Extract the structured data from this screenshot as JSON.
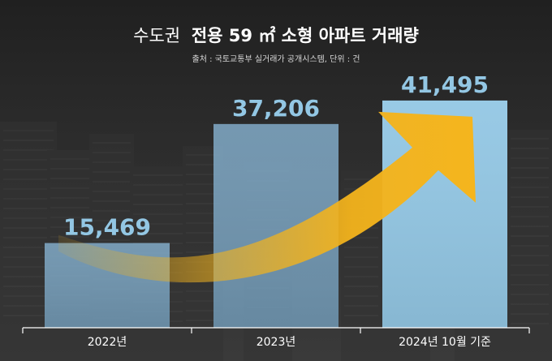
{
  "title_light": "수도권",
  "title_bold": "전용 59 ㎡ 소형 아파트 거래량",
  "source": "출처 : 국토교통부 실거래가 공개시스템, 단위 : 건",
  "colors": {
    "background": "#262626",
    "bar_past": "#7aa6c4",
    "bar_current": "#93c7e4",
    "value_label": "#93c7e4",
    "arrow": "#f3b31c",
    "axis_text": "#ffffff"
  },
  "chart_data": {
    "type": "bar",
    "categories": [
      "2022년",
      "2023년",
      "2024년 10월 기준"
    ],
    "values": [
      15469,
      37206,
      41495
    ],
    "value_labels": [
      "15,469",
      "37,206",
      "41,495"
    ],
    "ylim": [
      0,
      48000
    ],
    "grid": false,
    "decoration": "rising arrow"
  }
}
